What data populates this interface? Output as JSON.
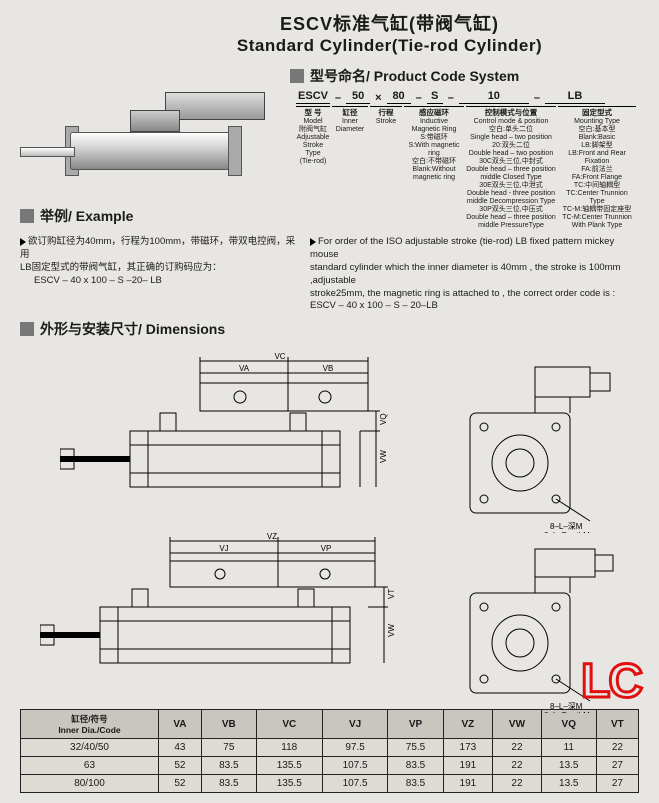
{
  "title": {
    "cn": "ESCV标准气缸(带阀气缸)",
    "en": "Standard Cylinder(Tie-rod Cylinder)"
  },
  "sections": {
    "code": "型号命名/ Product Code System",
    "example": "举例/ Example",
    "dims": "外形与安装尺寸/ Dimensions"
  },
  "code_line": {
    "s1": "ESCV",
    "d1": "–",
    "s2": "50",
    "d2": "×",
    "s3": "80",
    "d3": "–",
    "s4": "S",
    "d4": "–",
    "s5": "10",
    "d5": "–",
    "s6": "LB"
  },
  "code_cols": {
    "c1": {
      "h": "型 号",
      "l1": "Model",
      "l2": "附阀气缸",
      "l3": "Adjustable",
      "l4": "Stroke Type",
      "l5": "(Tie-rod)"
    },
    "c2": {
      "h": "缸径",
      "l1": "Inner",
      "l2": "Diameter"
    },
    "c3": {
      "h": "行程",
      "l1": "Stroke"
    },
    "c4": {
      "h": "感应磁环",
      "l1": "Inductive",
      "l2": "Magnetic Ring",
      "l3": "S:带磁环",
      "l4": "S:With magnetic ring",
      "l5": "空白:不带磁环",
      "l6": "Blank:Without",
      "l7": "magnetic ring"
    },
    "c5": {
      "h": "控制模式与位置",
      "l1": "Control mode & position",
      "l2": "空白:单头二位",
      "l3": "Single head – two position",
      "l4": "20:双头二位",
      "l5": "Double head – two position",
      "l6": "30C双头三位,中封式",
      "l7": "Double head – three position",
      "l8": "middle Closed Type",
      "l9": "30E双头三位,中泄式",
      "l10": "Double head - three position",
      "l11": "middle Decompression Type",
      "l12": "30P双头三位,中压式",
      "l13": "Double head – three position",
      "l14": "middle PressureType"
    },
    "c6": {
      "h": "固定型式",
      "l1": "Mounting Type",
      "l2": "空白:基本型",
      "l3": "Blank:Basic",
      "l4": "LB:脚架型",
      "l5": "LB:Front and Rear Fixation",
      "l6": "FA:前法兰",
      "l7": "FA:Front Flange",
      "l8": "TC:中间轴耦型",
      "l9": "TC:Center Trunnion Type",
      "l10": "TC-M:轴耦带固定座型",
      "l11": "TC-M:Center Trunnion",
      "l12": "With Plank Type"
    }
  },
  "example": {
    "left1": "欲订购缸径为40mm，行程为100mm，带磁环，带双电控阀，采用",
    "left2": "LB固定型式的带阀气缸，其正确的订购码应为：",
    "left3": "ESCV – 40 x 100 – S –20– LB",
    "right1": "For order of the ISO adjustable stroke (tie-rod) LB fixed pattern  mickey mouse",
    "right2": "standard cylinder which the inner diameter is 40mm , the stroke is 100mm ,adjustable",
    "right3": "stroke25mm, the magnetic ring is attached to , the correct order code is :",
    "right4": "ESCV – 40 x 100 – S – 20–LB"
  },
  "dim_labels": {
    "VA": "VA",
    "VB": "VB",
    "VC": "VC",
    "VJ": "VJ",
    "VP": "VP",
    "VZ": "VZ",
    "VW": "VW",
    "VQ": "VQ",
    "VT": "VT",
    "note1": "8–L–深M",
    "note2": "8–L–DepthM"
  },
  "table": {
    "header_rowlabel": "缸径/符号\nInner Dia./Code",
    "cols": [
      "VA",
      "VB",
      "VC",
      "VJ",
      "VP",
      "VZ",
      "VW",
      "VQ",
      "VT"
    ],
    "rows": [
      {
        "k": "32/40/50",
        "v": [
          "43",
          "75",
          "118",
          "97.5",
          "75.5",
          "173",
          "22",
          "11",
          "22"
        ]
      },
      {
        "k": "63",
        "v": [
          "52",
          "83.5",
          "135.5",
          "107.5",
          "83.5",
          "191",
          "22",
          "13.5",
          "27"
        ]
      },
      {
        "k": "80/100",
        "v": [
          "52",
          "83.5",
          "135.5",
          "107.5",
          "83.5",
          "191",
          "22",
          "13.5",
          "27"
        ]
      }
    ]
  },
  "watermark": "LC",
  "colors": {
    "bg": "#e8e6e2",
    "line": "#1a1a1a",
    "accent": "#e01010",
    "tbl_head": "#c9c6bf",
    "tbl_cell": "#dedbd5"
  }
}
